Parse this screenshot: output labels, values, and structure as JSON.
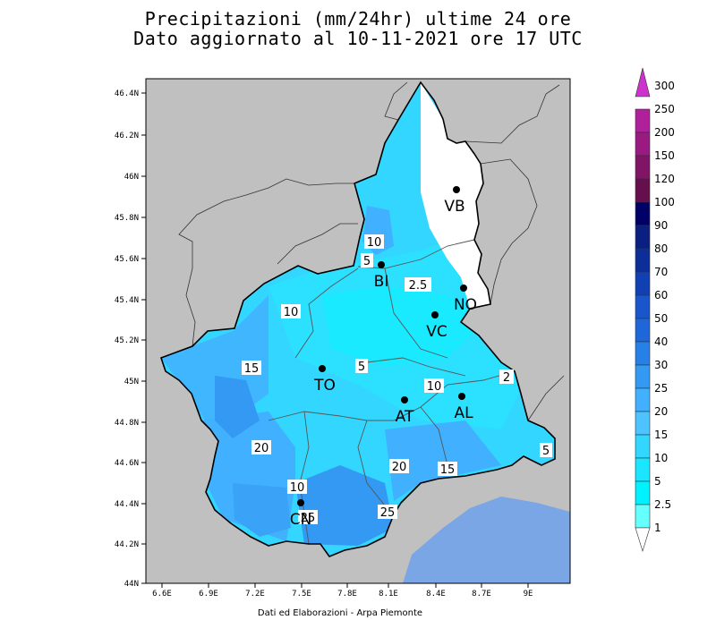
{
  "title_line1": "Precipitazioni (mm/24hr) ultime 24 ore",
  "title_line2": "Dato aggiornato al 10-11-2021 ore 17 UTC",
  "credit": "Dati ed Elaborazioni - Arpa Piemonte",
  "lat_ticks": [
    "46.4N",
    "46.2N",
    "46N",
    "45.8N",
    "45.6N",
    "45.4N",
    "45.2N",
    "45N",
    "44.8N",
    "44.6N",
    "44.4N",
    "44.2N",
    "44N"
  ],
  "lon_ticks": [
    "6.6E",
    "6.9E",
    "7.2E",
    "7.5E",
    "7.8E",
    "8.1E",
    "8.4E",
    "8.7E",
    "9E"
  ],
  "colorbar": {
    "labels": [
      "300",
      "250",
      "200",
      "150",
      "120",
      "100",
      "90",
      "80",
      "70",
      "60",
      "50",
      "40",
      "30",
      "25",
      "20",
      "15",
      "10",
      "5",
      "2.5",
      "1"
    ],
    "colors": [
      "#cc33cc",
      "#b0209a",
      "#991a80",
      "#801466",
      "#660f4d",
      "#000066",
      "#0a1f80",
      "#0d2e99",
      "#1040b3",
      "#1a55cc",
      "#1f66d9",
      "#2680e6",
      "#3399f2",
      "#40b0ff",
      "#4dc4ff",
      "#33d6ff",
      "#1ae6ff",
      "#00f2ff",
      "#66ffff",
      "#ffffff"
    ]
  },
  "cities": [
    {
      "code": "VB"
    },
    {
      "code": "BI"
    },
    {
      "code": "NO"
    },
    {
      "code": "VC"
    },
    {
      "code": "TO"
    },
    {
      "code": "AT"
    },
    {
      "code": "AL"
    },
    {
      "code": "CN"
    }
  ],
  "contour_labels": [
    "10",
    "5",
    "2.5",
    "10",
    "5",
    "15",
    "10",
    "2",
    "20",
    "20",
    "15",
    "5",
    "10",
    "25",
    "25"
  ]
}
